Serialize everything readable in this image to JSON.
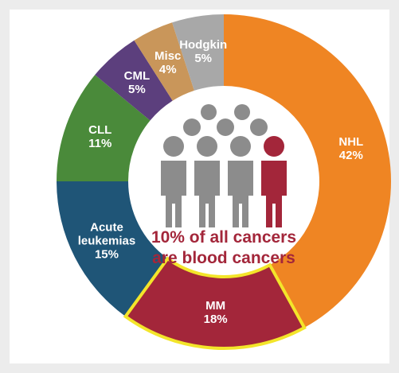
{
  "chart_data": {
    "type": "donut",
    "categories": [
      "NHL",
      "MM",
      "Acute leukemias",
      "CLL",
      "CML",
      "Misc",
      "Hodgkin"
    ],
    "values": [
      42,
      18,
      15,
      11,
      5,
      4,
      5
    ],
    "value_labels": [
      "42%",
      "18%",
      "15%",
      "11%",
      "5%",
      "4%",
      "5%"
    ],
    "colors": [
      "#ef8523",
      "#a3263a",
      "#1f5577",
      "#4a8a3a",
      "#5c3f7d",
      "#c9965a",
      "#a8a8a8"
    ],
    "highlighted": "MM",
    "highlight_color": "#f3e52a",
    "center_text": [
      "10% of all cancers",
      "are blood cancers"
    ]
  }
}
